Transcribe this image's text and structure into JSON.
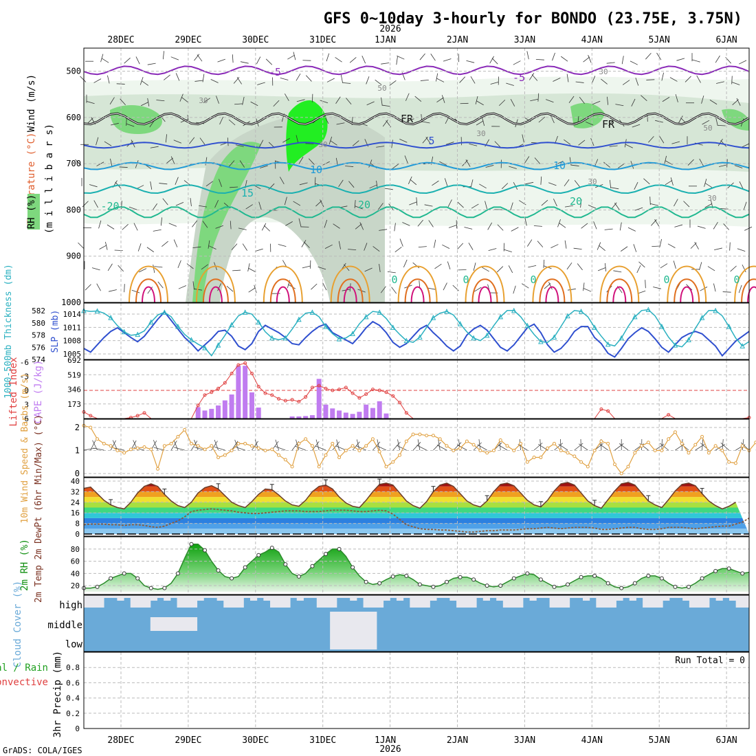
{
  "title": "GFS 0~10day 3-hourly for BONDO (23.75E, 3.75N)",
  "credit": "GrADS: COLA/IGES",
  "year": "2026",
  "date_labels": [
    "28DEC",
    "29DEC",
    "30DEC",
    "31DEC",
    "1JAN",
    "2JAN",
    "3JAN",
    "4JAN",
    "5JAN",
    "6JAN"
  ],
  "colors": {
    "grid": "#bbbbbb",
    "thickness": "#2f4fcf",
    "slp": "#2ab0c0",
    "cape": "#c07cf0",
    "li": "#e04040",
    "wind10": "#e0a040",
    "temp_line": "#6b3d2a",
    "rh_line": "#2a8a2a",
    "cloud": "#6aaad8",
    "cloud_clear": "#e8e8ee",
    "fr": "#111111"
  },
  "chart_data": [
    {
      "panel": "upper",
      "type": "heatmap",
      "ylabel_wind": "Wind (m/s)",
      "ylabel_temp": "Temperature (°C)",
      "ylabel_rh": "RH (%)",
      "ylabel_units": "(m i l l i b a r s)",
      "y_ticks": [
        500,
        600,
        700,
        800,
        900,
        1000
      ],
      "ylim": [
        450,
        1000
      ],
      "isotherm_labels": [
        "-5",
        "-5",
        "FR",
        "FR",
        "5",
        "10",
        "10",
        "15",
        "20",
        "20",
        "-20",
        "0",
        "0",
        "0",
        "0",
        "0"
      ],
      "rh_labels": [
        "30",
        "50",
        "30",
        "30",
        "50",
        "30",
        "30",
        "30"
      ]
    },
    {
      "panel": "thickness_slp",
      "type": "line",
      "ylabel_left": "1000-500mb Thickness (dm)",
      "ylabel_right": "SLP (mb)",
      "y_ticks_left": [
        574,
        576,
        578,
        580,
        582
      ],
      "y_ticks_right": [
        1005,
        1008,
        1011,
        1014
      ],
      "series": [
        {
          "name": "Thickness",
          "values": [
            575.8,
            575.2,
            576.4,
            577.6,
            578.6,
            579.2,
            578.4,
            577.6,
            576.9,
            577.8,
            579.2,
            580.6,
            581.8,
            580.4,
            579.0,
            577.6,
            576.6,
            575.4,
            576.4,
            577.4,
            578.6,
            578.8,
            577.8,
            576.2,
            575.6,
            576.6,
            578.6,
            579.6,
            579.0,
            578.4,
            577.6,
            576.6,
            576.4,
            577.6,
            578.6,
            579.4,
            579.8,
            578.4,
            577.8,
            577.2,
            576.6,
            577.8,
            579.2,
            580.2,
            579.6,
            578.4,
            576.8,
            576.0,
            576.6,
            577.8,
            579.0,
            579.6,
            578.4,
            577.4,
            576.2,
            575.4,
            576.2,
            578.0,
            579.0,
            579.6,
            578.8,
            577.4,
            576.0,
            575.4,
            576.4,
            577.8,
            579.2,
            579.8,
            578.4,
            576.4,
            575.2,
            575.8,
            577.0,
            578.6,
            579.4,
            579.4,
            577.6,
            576.6,
            575.0,
            574.4,
            575.8,
            577.4,
            578.4,
            579.2,
            578.6,
            577.4,
            576.0,
            575.2,
            576.4,
            577.6,
            578.2,
            578.6,
            578.2,
            577.2,
            576.2,
            574.6,
            575.8,
            577.0,
            577.8,
            578.6
          ]
        },
        {
          "name": "SLP",
          "values": [
            1014.8,
            1014.6,
            1014.7,
            1014.2,
            1013.2,
            1011.4,
            1010.0,
            1009.2,
            1009.4,
            1010.2,
            1012.2,
            1013.8,
            1014.4,
            1013.4,
            1011.2,
            1009.4,
            1008.2,
            1007.2,
            1006.4,
            1004.6,
            1007.0,
            1009.2,
            1011.6,
            1013.6,
            1014.4,
            1014.0,
            1012.2,
            1010.0,
            1008.6,
            1008.2,
            1008.6,
            1010.6,
            1012.8,
            1014.2,
            1014.4,
            1013.4,
            1011.2,
            1009.6,
            1008.4,
            1008.6,
            1009.6,
            1011.8,
            1013.4,
            1014.6,
            1014.4,
            1013.0,
            1011.0,
            1009.4,
            1008.0,
            1007.6,
            1008.8,
            1011.0,
            1013.2,
            1014.2,
            1014.6,
            1013.8,
            1011.8,
            1010.0,
            1008.6,
            1008.0,
            1009.2,
            1011.4,
            1013.4,
            1014.8,
            1014.8,
            1013.4,
            1011.4,
            1009.4,
            1007.8,
            1007.6,
            1008.8,
            1011.2,
            1013.6,
            1014.8,
            1014.6,
            1013.4,
            1011.0,
            1009.0,
            1007.2,
            1006.8,
            1008.6,
            1011.2,
            1013.4,
            1014.8,
            1015.0,
            1013.6,
            1011.2,
            1008.8,
            1007.0,
            1006.6,
            1008.2,
            1010.8,
            1013.2,
            1014.8,
            1014.8,
            1013.6,
            1011.2,
            1008.6,
            1006.8,
            1007.8
          ]
        }
      ]
    },
    {
      "panel": "cape_li",
      "type": "bar",
      "ylabel_left": "Lifted Index",
      "ylabel_right": "CAPE (J/kg)",
      "y_ticks_left": [
        -6,
        -3,
        0,
        3,
        6
      ],
      "y_ticks_right": [
        173,
        346,
        519,
        692
      ],
      "series": [
        {
          "name": "CAPE",
          "values": [
            0,
            0,
            0,
            0,
            0,
            0,
            0,
            0,
            0,
            0,
            0,
            0,
            0,
            0,
            0,
            0,
            0,
            135,
            95,
            115,
            155,
            215,
            285,
            625,
            625,
            310,
            130,
            0,
            0,
            0,
            0,
            25,
            25,
            30,
            40,
            470,
            165,
            120,
            95,
            70,
            55,
            80,
            165,
            125,
            205,
            60,
            0,
            0,
            0,
            0,
            0,
            0,
            0,
            0,
            0,
            0,
            0,
            0,
            0,
            0,
            0,
            0,
            0,
            0,
            0,
            0,
            0,
            0,
            0,
            0,
            0,
            0,
            0,
            0,
            0,
            0,
            0,
            0,
            0,
            0,
            0,
            0,
            0,
            0,
            0,
            0,
            0,
            0,
            0,
            0,
            0,
            0,
            0,
            0,
            0,
            0,
            0,
            0,
            0,
            0
          ]
        },
        {
          "name": "Lifted Index",
          "values": [
            4.6,
            5.4,
            6.0,
            6.0,
            6.0,
            6.0,
            6.0,
            5.8,
            5.4,
            4.8,
            6.0,
            6.0,
            6.0,
            6.0,
            6.0,
            6.0,
            6.0,
            3.2,
            1.0,
            0.4,
            -0.4,
            -1.6,
            -3.6,
            -5.4,
            -5.8,
            -3.6,
            -0.8,
            0.6,
            1.0,
            1.8,
            2.2,
            2.0,
            2.4,
            1.4,
            -0.6,
            -1.0,
            -0.4,
            0.0,
            -0.2,
            -0.6,
            0.6,
            1.6,
            0.8,
            -0.2,
            0.0,
            0.4,
            1.2,
            2.6,
            4.8,
            6.0,
            6.0,
            6.0,
            6.0,
            6.0,
            6.0,
            6.0,
            6.0,
            6.0,
            6.0,
            6.0,
            6.0,
            6.0,
            6.0,
            6.0,
            6.0,
            6.0,
            6.0,
            6.0,
            6.0,
            6.0,
            6.0,
            6.0,
            6.0,
            6.0,
            6.0,
            6.0,
            6.0,
            4.0,
            4.4,
            6.0,
            6.0,
            6.0,
            6.0,
            6.0,
            6.0,
            6.0,
            6.0,
            5.2,
            6.0,
            6.0,
            6.0,
            6.0,
            6.0,
            6.0,
            6.0,
            6.0,
            6.0,
            6.0,
            6.0,
            5.8
          ]
        }
      ]
    },
    {
      "panel": "wind10m",
      "type": "line",
      "ylabel": "10m Wind Speed & Barbs (m/s)",
      "y_ticks": [
        0,
        1,
        2
      ],
      "ylim": [
        0,
        2.2
      ],
      "series": [
        {
          "name": "10m Wind Speed",
          "values": [
            2.08,
            2.0,
            1.5,
            1.3,
            1.2,
            1.0,
            0.9,
            1.05,
            1.1,
            1.15,
            1.05,
            0.2,
            1.2,
            1.3,
            1.6,
            1.9,
            1.3,
            1.2,
            1.05,
            1.2,
            0.7,
            0.8,
            1.0,
            1.3,
            1.3,
            1.2,
            1.1,
            1.0,
            1.05,
            0.8,
            0.6,
            0.3,
            1.3,
            1.5,
            1.2,
            0.3,
            0.8,
            1.3,
            0.7,
            1.0,
            1.2,
            1.0,
            1.2,
            1.5,
            0.95,
            0.3,
            0.5,
            0.8,
            1.4,
            1.7,
            1.7,
            1.65,
            1.65,
            1.5,
            1.2,
            1.0,
            1.1,
            1.4,
            1.25,
            1.0,
            0.9,
            1.0,
            1.45,
            1.2,
            1.0,
            1.3,
            0.5,
            0.7,
            0.7,
            1.1,
            1.3,
            1.0,
            0.9,
            0.75,
            0.5,
            0.3,
            1.0,
            1.4,
            1.3,
            0.4,
            0.0,
            0.3,
            0.9,
            1.2,
            1.35,
            1.0,
            1.0,
            1.5,
            1.8,
            1.3,
            0.9,
            1.25,
            1.6,
            0.9,
            1.2,
            1.0,
            0.5,
            0.45,
            1.2,
            1.0,
            1.35,
            1.5,
            1.4
          ]
        }
      ]
    },
    {
      "panel": "temp2m",
      "type": "area",
      "ylabel": "2m Temp 2m DewPt (6hr Min/Max) (°C)",
      "y_ticks": [
        0,
        8,
        16,
        24,
        32,
        40
      ],
      "ylim": [
        0,
        41
      ],
      "series": [
        {
          "name": "2m Temp",
          "values": [
            34.5,
            35.5,
            30.5,
            25.5,
            22.0,
            20.0,
            19.0,
            24.0,
            31.0,
            36.0,
            38.0,
            36.0,
            30.0,
            25.0,
            21.5,
            20.0,
            24.0,
            31.0,
            35.0,
            36.5,
            34.0,
            29.0,
            24.0,
            21.5,
            20.0,
            24.5,
            30.0,
            34.0,
            33.5,
            29.5,
            25.0,
            22.0,
            21.0,
            25.5,
            32.0,
            36.0,
            37.0,
            34.0,
            28.0,
            23.5,
            21.0,
            20.0,
            25.5,
            32.0,
            37.5,
            38.5,
            37.0,
            31.0,
            25.0,
            21.5,
            19.5,
            24.5,
            32.0,
            37.0,
            38.5,
            36.0,
            30.5,
            25.0,
            22.0,
            20.5,
            25.0,
            32.0,
            37.5,
            38.5,
            36.5,
            31.0,
            25.5,
            22.0,
            20.5,
            25.5,
            32.5,
            38.0,
            39.0,
            37.0,
            31.0,
            25.0,
            21.5,
            19.5,
            26.0,
            32.5,
            38.0,
            39.0,
            37.0,
            31.0,
            25.0,
            22.0,
            20.0,
            26.0,
            32.5,
            37.5,
            38.5,
            36.5,
            30.5,
            25.0,
            21.5,
            19.0,
            21.0,
            24.0
          ]
        },
        {
          "name": "2m DewPt",
          "values": [
            7.0,
            7.5,
            7.5,
            7.5,
            7.0,
            7.0,
            6.5,
            7.0,
            7.0,
            6.5,
            5.5,
            5.0,
            6.0,
            8.0,
            10.0,
            13.0,
            17.0,
            18.0,
            18.5,
            19.0,
            18.5,
            18.0,
            17.5,
            16.5,
            16.0,
            15.5,
            15.5,
            16.0,
            16.5,
            17.0,
            17.5,
            17.5,
            17.5,
            17.0,
            17.0,
            17.0,
            17.5,
            18.0,
            18.0,
            18.0,
            17.5,
            17.0,
            17.0,
            17.5,
            18.0,
            17.5,
            15.0,
            11.0,
            7.0,
            5.5,
            4.0,
            3.5,
            3.5,
            3.0,
            3.0,
            2.5,
            2.0,
            1.5,
            1.5,
            2.0,
            2.5,
            2.5,
            3.0,
            3.0,
            3.0,
            3.5,
            4.0,
            4.0,
            4.5,
            5.0,
            4.5,
            4.0,
            4.5,
            5.0,
            5.0,
            5.0,
            4.5,
            3.5,
            3.5,
            4.0,
            4.5,
            5.0,
            5.0,
            4.0,
            3.5,
            3.5,
            4.0,
            5.0,
            5.0,
            5.0,
            4.5,
            4.0,
            4.5,
            5.0,
            5.5,
            6.0,
            6.0,
            7.5,
            9.0,
            12.0
          ]
        }
      ]
    },
    {
      "panel": "rh2m",
      "type": "area",
      "ylabel": "2m RH (%)",
      "y_ticks": [
        20,
        40,
        60,
        80
      ],
      "ylim": [
        10,
        95
      ],
      "series": [
        {
          "name": "2m RH",
          "values": [
            16,
            16,
            18,
            24,
            32,
            36,
            40,
            40,
            32,
            20,
            16,
            14,
            16,
            24,
            40,
            65,
            88,
            88,
            78,
            60,
            45,
            35,
            32,
            35,
            50,
            60,
            70,
            75,
            82,
            75,
            55,
            40,
            35,
            40,
            52,
            62,
            72,
            80,
            80,
            68,
            50,
            36,
            26,
            22,
            24,
            30,
            35,
            38,
            36,
            30,
            22,
            20,
            18,
            20,
            26,
            32,
            34,
            34,
            30,
            24,
            20,
            18,
            20,
            26,
            32,
            36,
            40,
            38,
            30,
            24,
            18,
            18,
            22,
            28,
            34,
            36,
            36,
            32,
            24,
            18,
            16,
            18,
            24,
            32,
            36,
            36,
            32,
            24,
            18,
            16,
            18,
            24,
            32,
            38,
            44,
            48,
            48,
            44,
            40,
            42
          ]
        }
      ]
    },
    {
      "panel": "cloud",
      "type": "heatmap",
      "ylabel": "Cloud Cover (%)",
      "levels": [
        "high",
        "middle",
        "low"
      ]
    },
    {
      "panel": "precip",
      "type": "bar",
      "ylabel_left": "Total / Rain",
      "ylabel_left2": "Convective",
      "ylabel": "3hr Precip (mm)",
      "y_ticks": [
        0,
        0.2,
        0.4,
        0.6,
        0.8
      ],
      "ylim": [
        0,
        1.0
      ],
      "run_total": "Run Total = 0",
      "values": []
    }
  ]
}
